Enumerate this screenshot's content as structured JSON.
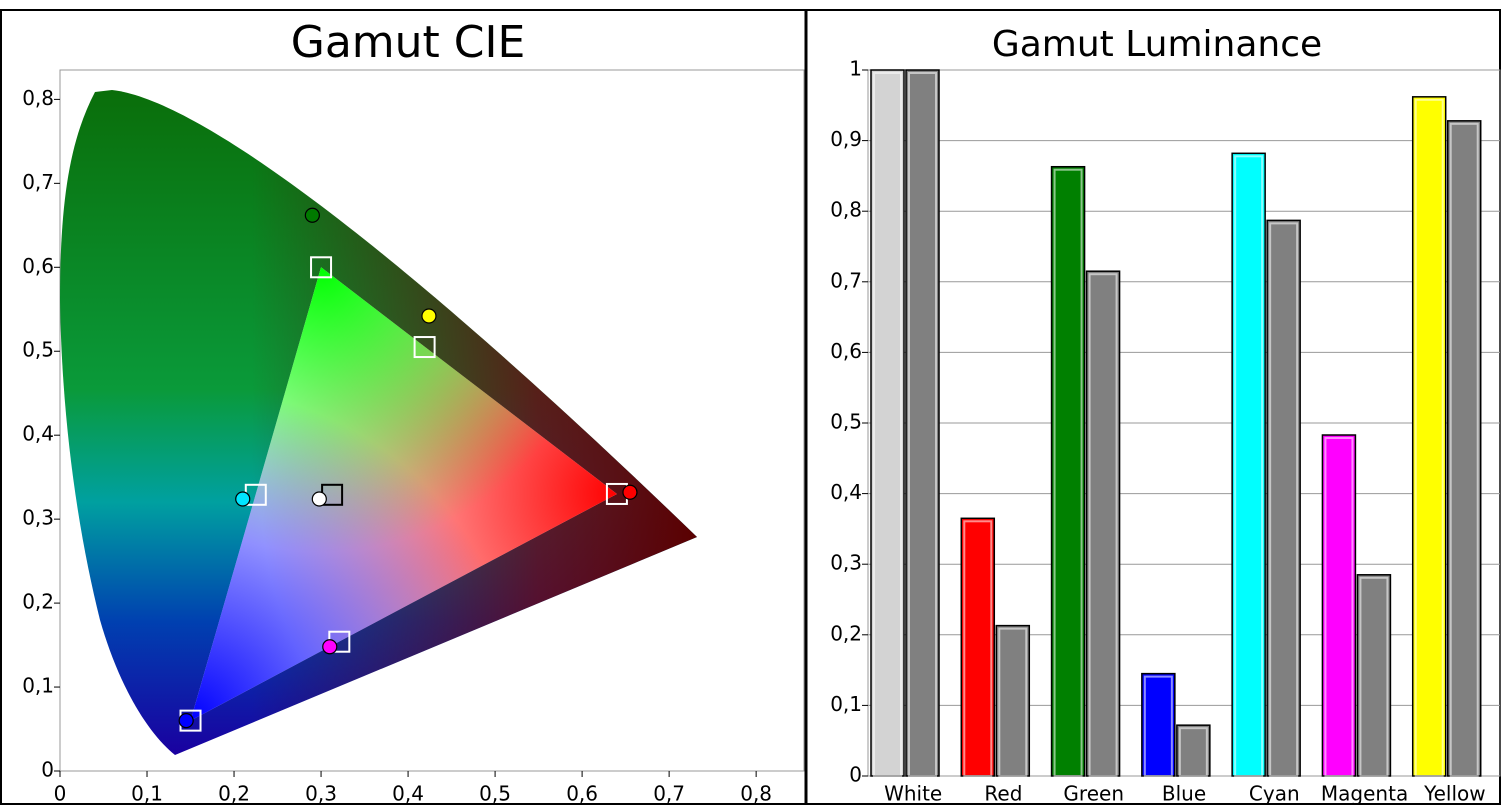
{
  "chart_data": [
    {
      "type": "scatter",
      "title": "Gamut CIE",
      "xlim": [
        0,
        0.855
      ],
      "ylim": [
        0,
        0.835
      ],
      "xticks": [
        0,
        {
          "value": 0.1,
          "label": "0,1"
        },
        {
          "value": 0.2,
          "label": "0,2"
        },
        {
          "value": 0.3,
          "label": "0,3"
        },
        {
          "value": 0.4,
          "label": "0,4"
        },
        {
          "value": 0.5,
          "label": "0,5"
        },
        {
          "value": 0.6,
          "label": "0,6"
        },
        {
          "value": 0.7,
          "label": "0,7"
        },
        {
          "value": 0.8,
          "label": "0,8"
        }
      ],
      "yticks": [
        0,
        {
          "value": 0.1,
          "label": "0,1"
        },
        {
          "value": 0.2,
          "label": "0,2"
        },
        {
          "value": 0.3,
          "label": "0,3"
        },
        {
          "value": 0.4,
          "label": "0,4"
        },
        {
          "value": 0.5,
          "label": "0,5"
        },
        {
          "value": 0.6,
          "label": "0,6"
        },
        {
          "value": 0.7,
          "label": "0,7"
        },
        {
          "value": 0.8,
          "label": "0,8"
        }
      ],
      "series": [
        {
          "marker": "square",
          "colors": [
            "#ffffff",
            "#ffffff",
            "#ffffff",
            "#000000",
            "#ffffff",
            "#ffffff",
            "#ffffff"
          ],
          "x": [
            0.64,
            0.3,
            0.15,
            0.3127,
            0.225,
            0.321,
            0.419
          ],
          "values": [
            0.33,
            0.6,
            0.06,
            0.329,
            0.329,
            0.154,
            0.505
          ]
        },
        {
          "marker": "circle",
          "colors": [
            "#ff0000",
            "#007a00",
            "#0000ff",
            "#ffffff",
            "#00e5ff",
            "#ff00ff",
            "#ffff00"
          ],
          "x": [
            0.655,
            0.29,
            0.145,
            0.298,
            0.21,
            0.31,
            0.424
          ],
          "values": [
            0.332,
            0.662,
            0.06,
            0.324,
            0.324,
            0.148,
            0.542
          ]
        }
      ]
    },
    {
      "type": "bar",
      "title": "Gamut Luminance",
      "categories": [
        "White",
        "Red",
        "Green",
        "Blue",
        "Cyan",
        "Magenta",
        "Yellow"
      ],
      "ylim": [
        0,
        1
      ],
      "yticks": [
        0,
        {
          "value": 0.1,
          "label": "0,1"
        },
        {
          "value": 0.2,
          "label": "0,2"
        },
        {
          "value": 0.3,
          "label": "0,3"
        },
        {
          "value": 0.4,
          "label": "0,4"
        },
        {
          "value": 0.5,
          "label": "0,5"
        },
        {
          "value": 0.6,
          "label": "0,6"
        },
        {
          "value": 0.7,
          "label": "0,7"
        },
        {
          "value": 0.8,
          "label": "0,8"
        },
        {
          "value": 0.9,
          "label": "0,9"
        },
        1
      ],
      "grid": true,
      "series": [
        {
          "colors": [
            "#d3d3d3",
            "#ff0000",
            "#008000",
            "#0000ff",
            "#00ffff",
            "#ff00ff",
            "#ffff00"
          ],
          "values": [
            1.0,
            0.365,
            0.863,
            0.145,
            0.882,
            0.483,
            0.962
          ]
        },
        {
          "color": "#808080",
          "values": [
            1.0,
            0.213,
            0.715,
            0.072,
            0.787,
            0.285,
            0.928
          ]
        }
      ]
    }
  ]
}
